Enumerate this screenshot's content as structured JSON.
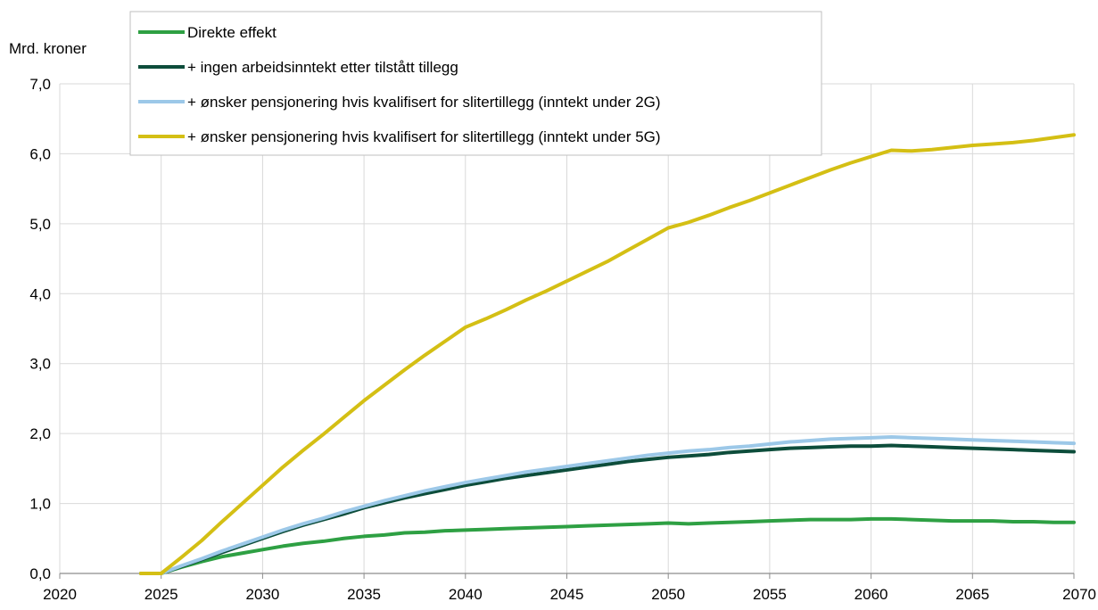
{
  "chart_data": {
    "type": "line",
    "ylabel": "Mrd. kroner",
    "xlabel": "",
    "xlim": [
      2020,
      2070
    ],
    "ylim": [
      0,
      7
    ],
    "x_ticks": [
      2020,
      2025,
      2030,
      2035,
      2040,
      2045,
      2050,
      2055,
      2060,
      2065,
      2070
    ],
    "x_tick_labels": [
      "2020",
      "2025",
      "2030",
      "2035",
      "2040",
      "2045",
      "2050",
      "2055",
      "2060",
      "2065",
      "2070"
    ],
    "y_ticks": [
      0,
      1,
      2,
      3,
      4,
      5,
      6,
      7
    ],
    "y_tick_labels": [
      "0,0",
      "1,0",
      "2,0",
      "3,0",
      "4,0",
      "5,0",
      "6,0",
      "7,0"
    ],
    "grid": true,
    "legend_position": "top-left",
    "series": [
      {
        "name": "Direkte effekt",
        "color": "#2ea043",
        "x": [
          2024,
          2025,
          2026,
          2027,
          2028,
          2029,
          2030,
          2031,
          2032,
          2033,
          2034,
          2035,
          2036,
          2037,
          2038,
          2039,
          2040,
          2041,
          2042,
          2043,
          2044,
          2045,
          2046,
          2047,
          2048,
          2049,
          2050,
          2051,
          2052,
          2053,
          2054,
          2055,
          2056,
          2057,
          2058,
          2059,
          2060,
          2061,
          2062,
          2063,
          2064,
          2065,
          2066,
          2067,
          2068,
          2069,
          2070
        ],
        "y": [
          0.0,
          0.0,
          0.09,
          0.17,
          0.24,
          0.29,
          0.34,
          0.39,
          0.43,
          0.46,
          0.5,
          0.53,
          0.55,
          0.58,
          0.59,
          0.61,
          0.62,
          0.63,
          0.64,
          0.65,
          0.66,
          0.67,
          0.68,
          0.69,
          0.7,
          0.71,
          0.72,
          0.71,
          0.72,
          0.73,
          0.74,
          0.75,
          0.76,
          0.77,
          0.77,
          0.77,
          0.78,
          0.78,
          0.77,
          0.76,
          0.75,
          0.75,
          0.75,
          0.74,
          0.74,
          0.73,
          0.73
        ]
      },
      {
        "name": "+ ingen arbeidsinntekt etter tilstått tillegg",
        "color": "#0d4d3b",
        "x": [
          2024,
          2025,
          2026,
          2027,
          2028,
          2029,
          2030,
          2031,
          2032,
          2033,
          2034,
          2035,
          2036,
          2037,
          2038,
          2039,
          2040,
          2041,
          2042,
          2043,
          2044,
          2045,
          2046,
          2047,
          2048,
          2049,
          2050,
          2051,
          2052,
          2053,
          2054,
          2055,
          2056,
          2057,
          2058,
          2059,
          2060,
          2061,
          2062,
          2063,
          2064,
          2065,
          2066,
          2067,
          2068,
          2069,
          2070
        ],
        "y": [
          0.0,
          0.0,
          0.1,
          0.2,
          0.3,
          0.4,
          0.5,
          0.6,
          0.69,
          0.77,
          0.85,
          0.94,
          1.01,
          1.08,
          1.14,
          1.2,
          1.26,
          1.31,
          1.36,
          1.4,
          1.44,
          1.48,
          1.52,
          1.56,
          1.6,
          1.63,
          1.66,
          1.68,
          1.7,
          1.73,
          1.75,
          1.77,
          1.79,
          1.8,
          1.81,
          1.82,
          1.82,
          1.83,
          1.82,
          1.81,
          1.8,
          1.79,
          1.78,
          1.77,
          1.76,
          1.75,
          1.74
        ]
      },
      {
        "name": "+ ønsker pensjonering hvis kvalifisert for slitertillegg (inntekt under 2G)",
        "color": "#9cc8e8",
        "x": [
          2024,
          2025,
          2026,
          2027,
          2028,
          2029,
          2030,
          2031,
          2032,
          2033,
          2034,
          2035,
          2036,
          2037,
          2038,
          2039,
          2040,
          2041,
          2042,
          2043,
          2044,
          2045,
          2046,
          2047,
          2048,
          2049,
          2050,
          2051,
          2052,
          2053,
          2054,
          2055,
          2056,
          2057,
          2058,
          2059,
          2060,
          2061,
          2062,
          2063,
          2064,
          2065,
          2066,
          2067,
          2068,
          2069,
          2070
        ],
        "y": [
          0.0,
          0.0,
          0.11,
          0.21,
          0.32,
          0.42,
          0.52,
          0.62,
          0.71,
          0.79,
          0.88,
          0.96,
          1.04,
          1.11,
          1.18,
          1.24,
          1.3,
          1.35,
          1.4,
          1.45,
          1.49,
          1.53,
          1.57,
          1.61,
          1.65,
          1.69,
          1.72,
          1.75,
          1.77,
          1.8,
          1.82,
          1.85,
          1.88,
          1.9,
          1.92,
          1.93,
          1.94,
          1.95,
          1.94,
          1.93,
          1.92,
          1.91,
          1.9,
          1.89,
          1.88,
          1.87,
          1.86
        ]
      },
      {
        "name": "+ ønsker pensjonering hvis kvalifisert for slitertillegg (inntekt under 5G)",
        "color": "#d4bf14",
        "x": [
          2024,
          2025,
          2026,
          2027,
          2028,
          2029,
          2030,
          2031,
          2032,
          2033,
          2034,
          2035,
          2036,
          2037,
          2038,
          2039,
          2040,
          2041,
          2042,
          2043,
          2044,
          2045,
          2046,
          2047,
          2048,
          2049,
          2050,
          2051,
          2052,
          2053,
          2054,
          2055,
          2056,
          2057,
          2058,
          2059,
          2060,
          2061,
          2062,
          2063,
          2064,
          2065,
          2066,
          2067,
          2068,
          2069,
          2070
        ],
        "y": [
          0.0,
          0.0,
          0.23,
          0.47,
          0.74,
          1.0,
          1.26,
          1.52,
          1.76,
          1.99,
          2.23,
          2.47,
          2.69,
          2.91,
          3.12,
          3.32,
          3.52,
          3.64,
          3.77,
          3.91,
          4.04,
          4.18,
          4.32,
          4.46,
          4.62,
          4.78,
          4.94,
          5.02,
          5.12,
          5.23,
          5.33,
          5.44,
          5.55,
          5.66,
          5.77,
          5.87,
          5.96,
          6.05,
          6.04,
          6.06,
          6.09,
          6.12,
          6.14,
          6.16,
          6.19,
          6.23,
          6.27
        ]
      }
    ]
  }
}
